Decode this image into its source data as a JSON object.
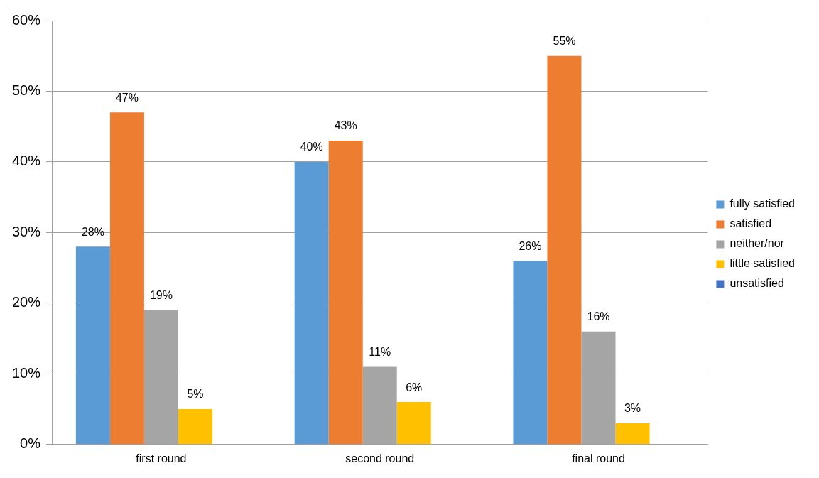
{
  "chart_data": {
    "type": "bar",
    "categories": [
      "first round",
      "second round",
      "final round"
    ],
    "series": [
      {
        "name": "fully satisfied",
        "color": "#5b9bd5",
        "values": [
          28,
          40,
          26
        ],
        "value_labels": [
          "28%",
          "40%",
          "26%"
        ]
      },
      {
        "name": "satisfied",
        "color": "#ed7d31",
        "values": [
          47,
          43,
          55
        ],
        "value_labels": [
          "47%",
          "43%",
          "55%"
        ]
      },
      {
        "name": "neither/nor",
        "color": "#a5a5a5",
        "values": [
          19,
          11,
          16
        ],
        "value_labels": [
          "19%",
          "11%",
          "16%"
        ]
      },
      {
        "name": "little satisfied",
        "color": "#ffc000",
        "values": [
          5,
          6,
          3
        ],
        "value_labels": [
          "5%",
          "6%",
          "3%"
        ]
      },
      {
        "name": "unsatisfied",
        "color": "#4472c4",
        "values": [
          null,
          null,
          null
        ],
        "value_labels": [
          null,
          null,
          null
        ]
      }
    ],
    "ylim": [
      0,
      60
    ],
    "yticks": [
      {
        "value": 0,
        "label": "0%"
      },
      {
        "value": 10,
        "label": "10%"
      },
      {
        "value": 20,
        "label": "20%"
      },
      {
        "value": 30,
        "label": "30%"
      },
      {
        "value": 40,
        "label": "40%"
      },
      {
        "value": 50,
        "label": "50%"
      },
      {
        "value": 60,
        "label": "60%"
      }
    ],
    "grid": "y",
    "legend": "right"
  }
}
